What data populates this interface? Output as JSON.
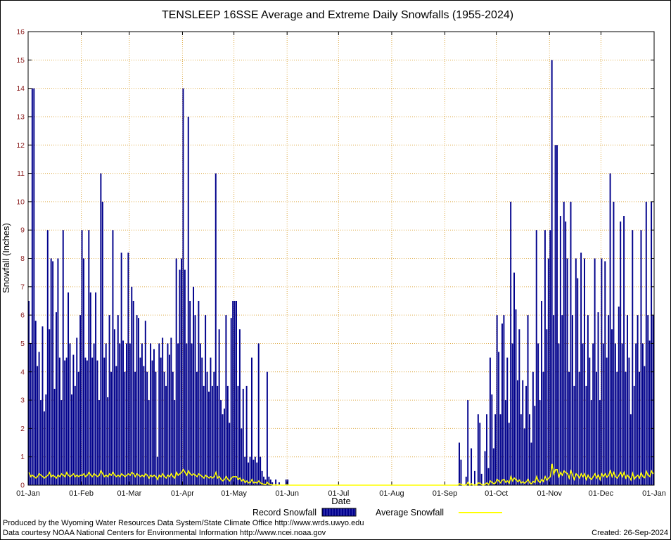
{
  "title": "TENSLEEP 16SSE Average and Extreme Daily Snowfalls (1955-2024)",
  "legend": {
    "record_label": "Record Snowfall",
    "average_label": "Average Snowfall"
  },
  "footer": {
    "line1": "Produced by the Wyoming Water Resources Data System/State Climate Office http://www.wrds.uwyo.edu",
    "line2": "Data courtesy NOAA National Centers for Environmental Information http://www.ncei.noaa.gov",
    "created": "Created: 26-Sep-2024"
  },
  "chart_data": {
    "type": "bar",
    "title": "TENSLEEP 16SSE Average and Extreme Daily Snowfalls (1955-2024)",
    "xlabel": "Date",
    "ylabel": "Snowfall (Inches)",
    "ylim": [
      0,
      16
    ],
    "grid": true,
    "legend_position": "bottom",
    "y_ticks": [
      0,
      1,
      2,
      3,
      4,
      5,
      6,
      7,
      8,
      9,
      10,
      11,
      12,
      13,
      14,
      15,
      16
    ],
    "x_tick_labels": [
      "01-Jan",
      "01-Feb",
      "01-Mar",
      "01-Apr",
      "01-May",
      "01-Jun",
      "01-Jul",
      "01-Aug",
      "01-Sep",
      "01-Oct",
      "01-Nov",
      "01-Dec",
      "01-Jan"
    ],
    "month_days": [
      31,
      28,
      31,
      30,
      31,
      30,
      31,
      31,
      30,
      31,
      30,
      31
    ],
    "colors": {
      "bar": "#00008B",
      "line": "#FFFF00",
      "grid": "#DFAE4F",
      "axis": "#000000",
      "y_tick_label": "#8B2020",
      "x_tick_label": "#111111"
    },
    "series": [
      {
        "name": "Record Snowfall",
        "color": "#00008B",
        "values": [
          6.5,
          5,
          14,
          14,
          5.8,
          4.2,
          4.7,
          3,
          5.6,
          2.6,
          3.2,
          9,
          5.5,
          8,
          7.9,
          3.4,
          6.1,
          8,
          4.5,
          3,
          9,
          4.4,
          4.5,
          6.8,
          5,
          3.2,
          4.6,
          3.5,
          5.2,
          4,
          6,
          9,
          8,
          4.5,
          4.4,
          9,
          6.8,
          4.5,
          5,
          6.8,
          4.4,
          3,
          11,
          10,
          4.5,
          5,
          3.1,
          6,
          4,
          9,
          5.5,
          4.2,
          6,
          5,
          8.2,
          5.1,
          4,
          5,
          8.2,
          5,
          7,
          6.5,
          4,
          6,
          5.9,
          4.5,
          5,
          4.2,
          5.8,
          4,
          3,
          5,
          4.4,
          4.8,
          4,
          1,
          5,
          4.5,
          5.2,
          4,
          3.5,
          5,
          4.6,
          5.2,
          4,
          3,
          8,
          5,
          7.6,
          8,
          14,
          7.6,
          5,
          13,
          6.5,
          5,
          7,
          6,
          4,
          6.5,
          5,
          4.5,
          3.5,
          6,
          4,
          3.3,
          4.5,
          3.5,
          4,
          11,
          3.5,
          5.5,
          3,
          2.5,
          2.7,
          6,
          3.5,
          2.2,
          5.9,
          6.5,
          6.5,
          6.5,
          3.5,
          5.5,
          2,
          3.4,
          1,
          3.5,
          0.8,
          1,
          4.5,
          0.9,
          1,
          0.8,
          5,
          1,
          0.5,
          0.3,
          0.2,
          4,
          0.3,
          0.2,
          0.1,
          0,
          0.2,
          0,
          0.1,
          0,
          0,
          0,
          0.2,
          0.2,
          0,
          0,
          0,
          0,
          0,
          0,
          0,
          0,
          0,
          0,
          0,
          0,
          0,
          0,
          0,
          0,
          0,
          0,
          0,
          0,
          0,
          0,
          0,
          0,
          0,
          0,
          0,
          0,
          0,
          0,
          0,
          0,
          0,
          0,
          0,
          0,
          0,
          0,
          0,
          0,
          0,
          0,
          0,
          0,
          0,
          0,
          0,
          0,
          0,
          0,
          0,
          0,
          0,
          0,
          0,
          0,
          0,
          0,
          0,
          0,
          0,
          0,
          0,
          0,
          0,
          0,
          0,
          0,
          0,
          0,
          0,
          0,
          0,
          0,
          0,
          0,
          0,
          0,
          0,
          0,
          0,
          0,
          0,
          0,
          0,
          0,
          0,
          0,
          0,
          0,
          0,
          0,
          0,
          0,
          0,
          0,
          0,
          0,
          0,
          1.5,
          0.9,
          0,
          0,
          0.3,
          3,
          0,
          1.3,
          0,
          0.5,
          0,
          2.5,
          2.2,
          0.4,
          0,
          1.2,
          2.5,
          0.6,
          4.5,
          3.2,
          1.3,
          2.5,
          6,
          4.7,
          2.5,
          5.7,
          6,
          3,
          4.5,
          2.2,
          10,
          5,
          7.5,
          6.2,
          3.7,
          5.5,
          2.5,
          3.7,
          2,
          3.5,
          6,
          2.5,
          1.5,
          4,
          2.8,
          9,
          5,
          3,
          6.5,
          4,
          9,
          5.5,
          8,
          9,
          15,
          6,
          12,
          12,
          5,
          9.5,
          6,
          10,
          9.3,
          8,
          4,
          10,
          6,
          3.5,
          8,
          7.3,
          4,
          8.2,
          5,
          8,
          3.5,
          6,
          4.5,
          3,
          5,
          8,
          4,
          6.1,
          3,
          8,
          5,
          7.9,
          4.5,
          6,
          11,
          5.5,
          10,
          5,
          4,
          6.3,
          9.3,
          5,
          9.5,
          4,
          6,
          4.5,
          2.5,
          9,
          3.5,
          5,
          6,
          4,
          9,
          5,
          4.2,
          10,
          6,
          5.1,
          10,
          6
        ]
      },
      {
        "name": "Average Snowfall",
        "color": "#FFFF00",
        "values": [
          0.45,
          0.3,
          0.35,
          0.3,
          0.25,
          0.3,
          0.4,
          0.35,
          0.3,
          0.25,
          0.3,
          0.35,
          0.45,
          0.3,
          0.35,
          0.3,
          0.25,
          0.35,
          0.3,
          0.4,
          0.35,
          0.3,
          0.45,
          0.35,
          0.3,
          0.35,
          0.4,
          0.3,
          0.35,
          0.3,
          0.35,
          0.35,
          0.4,
          0.3,
          0.35,
          0.45,
          0.35,
          0.3,
          0.4,
          0.35,
          0.3,
          0.35,
          0.5,
          0.4,
          0.3,
          0.35,
          0.3,
          0.4,
          0.35,
          0.45,
          0.35,
          0.3,
          0.35,
          0.3,
          0.4,
          0.35,
          0.3,
          0.35,
          0.4,
          0.35,
          0.45,
          0.4,
          0.3,
          0.4,
          0.35,
          0.3,
          0.35,
          0.3,
          0.4,
          0.35,
          0.25,
          0.35,
          0.3,
          0.35,
          0.3,
          0.2,
          0.35,
          0.3,
          0.4,
          0.3,
          0.25,
          0.35,
          0.3,
          0.4,
          0.3,
          0.25,
          0.45,
          0.35,
          0.4,
          0.45,
          0.55,
          0.45,
          0.35,
          0.5,
          0.4,
          0.35,
          0.4,
          0.35,
          0.3,
          0.4,
          0.35,
          0.3,
          0.25,
          0.35,
          0.3,
          0.25,
          0.3,
          0.25,
          0.3,
          0.45,
          0.25,
          0.3,
          0.2,
          0.15,
          0.2,
          0.3,
          0.2,
          0.15,
          0.25,
          0.3,
          0.3,
          0.3,
          0.2,
          0.25,
          0.15,
          0.2,
          0.1,
          0.15,
          0.08,
          0.1,
          0.2,
          0.08,
          0.1,
          0.08,
          0.15,
          0.08,
          0.05,
          0.03,
          0.02,
          0.1,
          0.03,
          0.02,
          0.01,
          0,
          0.02,
          0,
          0.01,
          0,
          0,
          0,
          0.01,
          0.01,
          0,
          0,
          0,
          0,
          0,
          0,
          0,
          0,
          0,
          0,
          0,
          0,
          0,
          0,
          0,
          0,
          0,
          0,
          0,
          0,
          0,
          0,
          0,
          0,
          0,
          0,
          0,
          0,
          0,
          0,
          0,
          0,
          0,
          0,
          0,
          0,
          0,
          0,
          0,
          0,
          0,
          0,
          0,
          0,
          0,
          0,
          0,
          0,
          0,
          0,
          0,
          0,
          0,
          0,
          0,
          0,
          0,
          0,
          0,
          0,
          0,
          0,
          0,
          0,
          0,
          0,
          0,
          0,
          0,
          0,
          0,
          0,
          0,
          0,
          0,
          0,
          0,
          0,
          0,
          0,
          0,
          0,
          0,
          0,
          0,
          0,
          0,
          0,
          0,
          0,
          0,
          0,
          0,
          0,
          0,
          0,
          0,
          0,
          0,
          0.05,
          0.03,
          0,
          0,
          0.01,
          0.1,
          0,
          0.05,
          0,
          0.02,
          0,
          0.08,
          0.07,
          0.02,
          0,
          0.04,
          0.08,
          0.02,
          0.15,
          0.1,
          0.05,
          0.08,
          0.2,
          0.15,
          0.08,
          0.18,
          0.2,
          0.1,
          0.15,
          0.08,
          0.3,
          0.15,
          0.25,
          0.2,
          0.12,
          0.18,
          0.08,
          0.12,
          0.07,
          0.12,
          0.2,
          0.08,
          0.05,
          0.13,
          0.1,
          0.3,
          0.15,
          0.1,
          0.2,
          0.13,
          0.3,
          0.18,
          0.25,
          0.3,
          0.75,
          0.4,
          0.55,
          0.55,
          0.3,
          0.45,
          0.35,
          0.5,
          0.45,
          0.4,
          0.25,
          0.5,
          0.35,
          0.2,
          0.4,
          0.35,
          0.25,
          0.4,
          0.3,
          0.4,
          0.2,
          0.35,
          0.25,
          0.2,
          0.3,
          0.4,
          0.25,
          0.35,
          0.2,
          0.4,
          0.3,
          0.4,
          0.28,
          0.35,
          0.5,
          0.3,
          0.45,
          0.3,
          0.25,
          0.35,
          0.45,
          0.3,
          0.45,
          0.25,
          0.35,
          0.28,
          0.18,
          0.42,
          0.22,
          0.3,
          0.35,
          0.25,
          0.42,
          0.3,
          0.26,
          0.48,
          0.35,
          0.3,
          0.5,
          0.4
        ]
      }
    ]
  }
}
